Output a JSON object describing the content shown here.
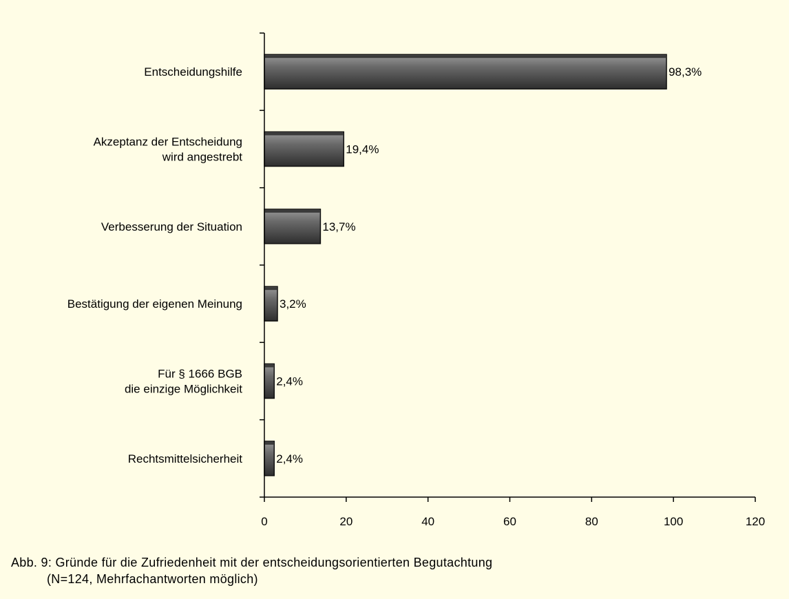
{
  "chart_data": {
    "type": "bar",
    "orientation": "horizontal",
    "categories": [
      [
        "Entscheidungshilfe"
      ],
      [
        "Akzeptanz der Entscheidung",
        "wird angestrebt"
      ],
      [
        "Verbesserung der Situation"
      ],
      [
        "Bestätigung der eigenen Meinung"
      ],
      [
        "Für § 1666 BGB",
        "die einzige Möglichkeit"
      ],
      [
        "Rechtsmittelsicherheit"
      ]
    ],
    "values": [
      98.3,
      19.4,
      13.7,
      3.2,
      2.4,
      2.4
    ],
    "value_labels": [
      "98,3%",
      "19,4%",
      "13,7%",
      "3,2%",
      "2,4%",
      "2,4%"
    ],
    "xlim": [
      0,
      120
    ],
    "xticks": [
      0,
      20,
      40,
      60,
      80,
      100,
      120
    ],
    "grid": false,
    "bar_color": "#555555"
  },
  "caption": {
    "line1": "Abb. 9: Gründe für die Zufriedenheit mit der entscheidungsorientierten Begutachtung",
    "line2": "(N=124, Mehrfachantworten möglich)"
  }
}
